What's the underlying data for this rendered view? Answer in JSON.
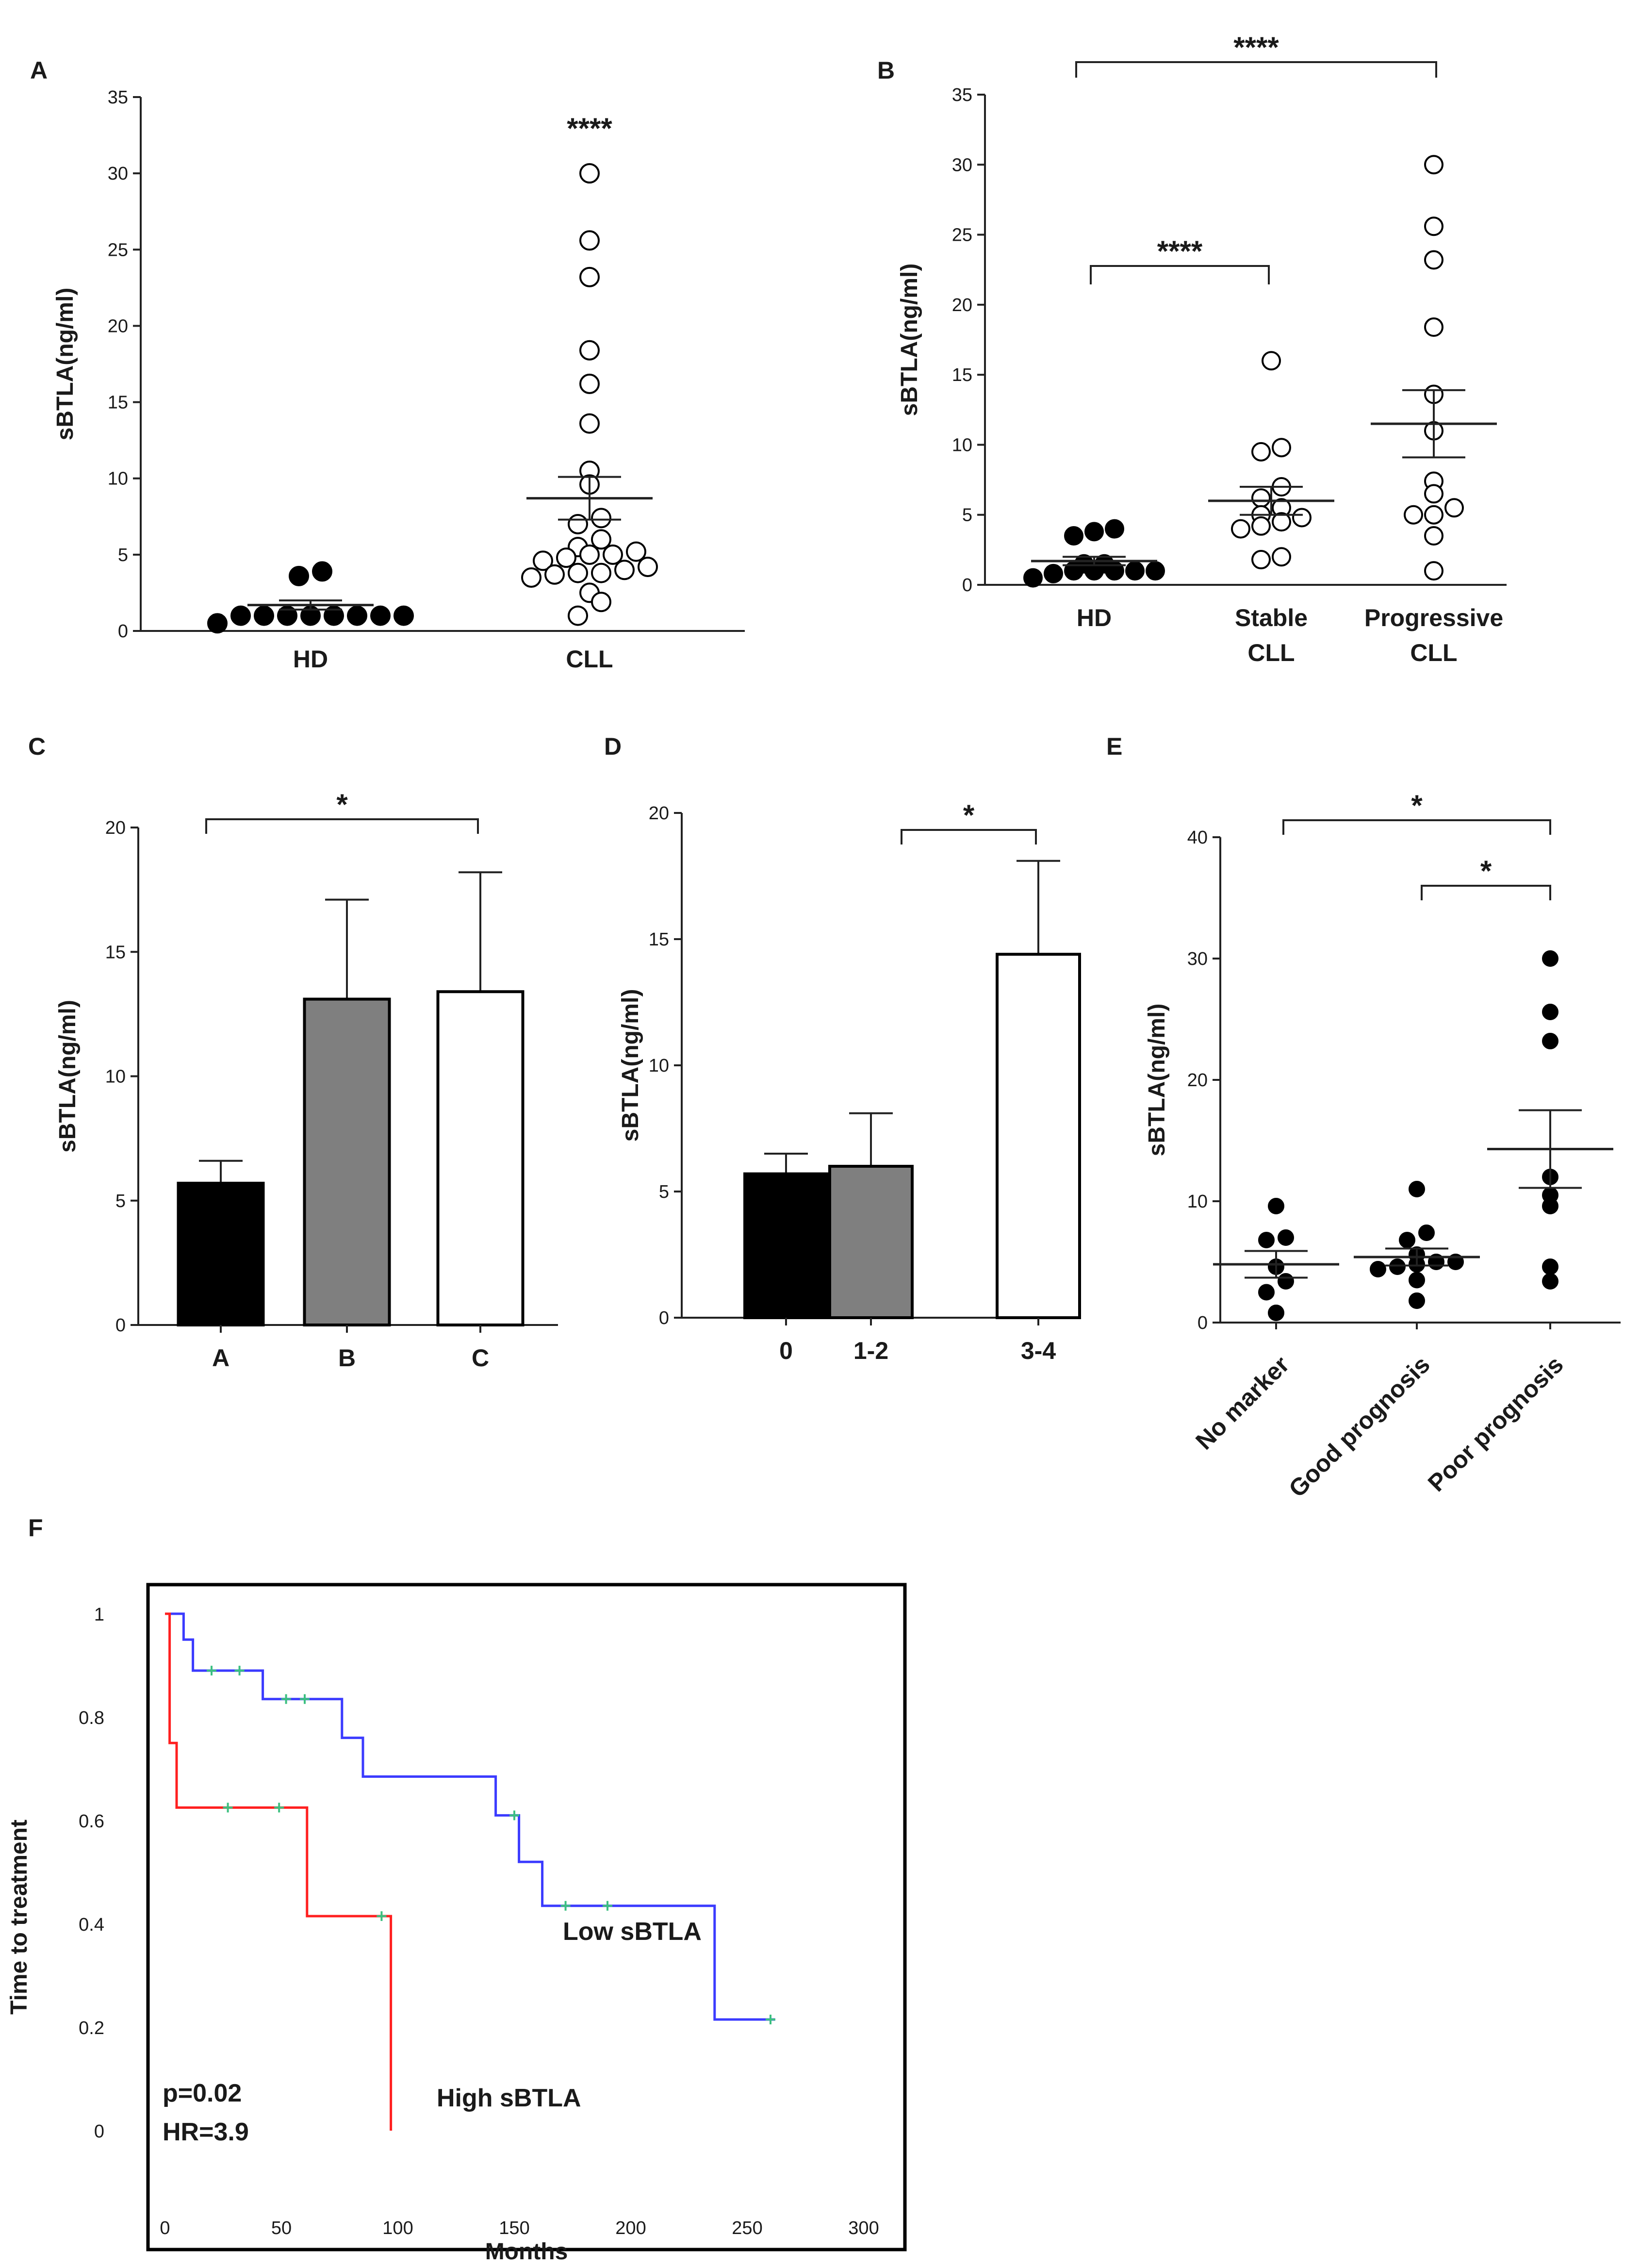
{
  "panel_labels": {
    "A": "A",
    "B": "B",
    "C": "C",
    "D": "D",
    "E": "E",
    "F": "F"
  },
  "colors": {
    "black": "#000000",
    "gray": "#7f7f7f",
    "white": "#ffffff",
    "red": "#ff2020",
    "blue": "#3b3bff",
    "censor": "#3cc080"
  },
  "chart_data": [
    {
      "panel": "A",
      "type": "scatter",
      "ylabel": "sBTLA(ng/ml)",
      "ylim": [
        0,
        35
      ],
      "yticks": [
        0,
        5,
        10,
        15,
        20,
        25,
        30,
        35
      ],
      "categories": [
        "HD",
        "CLL"
      ],
      "series": [
        {
          "category": "HD",
          "fill": "black",
          "values": [
            3.9,
            3.6,
            1.0,
            1.0,
            1.0,
            1.0,
            1.0,
            1.0,
            1.0,
            1.0,
            0.5
          ],
          "mean": 1.7,
          "sem": 0.3
        },
        {
          "category": "CLL",
          "fill": "white",
          "values": [
            30.0,
            25.6,
            23.2,
            18.4,
            16.2,
            13.6,
            10.5,
            9.6,
            7.4,
            7.0,
            6.0,
            5.5,
            5.2,
            5.0,
            5.0,
            4.8,
            4.6,
            4.2,
            4.0,
            3.8,
            3.8,
            3.7,
            3.5,
            2.5,
            1.9,
            1.0
          ],
          "mean": 8.7,
          "sem": 1.4
        }
      ],
      "annotations": [
        {
          "text": "****",
          "over": "CLL"
        }
      ]
    },
    {
      "panel": "B",
      "type": "scatter",
      "ylabel": "sBTLA(ng/ml)",
      "ylim": [
        0,
        35
      ],
      "yticks": [
        0,
        5,
        10,
        15,
        20,
        25,
        30,
        35
      ],
      "categories": [
        "HD",
        "Stable\nCLL",
        "Progressive\nCLL"
      ],
      "series": [
        {
          "category": "HD",
          "fill": "black",
          "values": [
            4.0,
            3.8,
            3.5,
            1.5,
            1.5,
            1.0,
            1.0,
            1.0,
            1.0,
            1.0,
            0.8,
            0.5
          ],
          "mean": 1.7,
          "sem": 0.3
        },
        {
          "category": "Stable CLL",
          "fill": "white",
          "values": [
            16.0,
            9.8,
            9.5,
            7.0,
            6.2,
            5.5,
            5.0,
            4.8,
            4.5,
            4.2,
            4.0,
            2.0,
            1.8
          ],
          "mean": 6.0,
          "sem": 1.0
        },
        {
          "category": "Progressive CLL",
          "fill": "white",
          "values": [
            30.0,
            25.6,
            23.2,
            18.4,
            13.6,
            11.0,
            7.4,
            6.5,
            5.5,
            5.0,
            5.0,
            3.5,
            1.0
          ],
          "mean": 11.5,
          "sem": 2.4
        }
      ],
      "brackets": [
        {
          "from": "HD",
          "to": "Progressive CLL",
          "text": "****"
        },
        {
          "from": "HD",
          "to": "Stable CLL",
          "text": "****"
        }
      ]
    },
    {
      "panel": "C",
      "type": "bar",
      "ylabel": "sBTLA(ng/ml)",
      "ylim": [
        0,
        20
      ],
      "yticks": [
        0,
        5,
        10,
        15,
        20
      ],
      "categories": [
        "A",
        "B",
        "C"
      ],
      "values": [
        5.7,
        13.1,
        13.4
      ],
      "errors": [
        0.9,
        4.0,
        4.8
      ],
      "fills": [
        "black",
        "gray",
        "white"
      ],
      "brackets": [
        {
          "from": "A",
          "to": "C",
          "text": "*"
        }
      ]
    },
    {
      "panel": "D",
      "type": "bar",
      "ylabel": "sBTLA(ng/ml)",
      "ylim": [
        0,
        20
      ],
      "yticks": [
        0,
        5,
        10,
        15,
        20
      ],
      "categories": [
        "0",
        "1-2",
        "3-4"
      ],
      "values": [
        5.7,
        6.0,
        14.4
      ],
      "errors": [
        0.8,
        2.1,
        3.7
      ],
      "fills": [
        "black",
        "gray",
        "white"
      ],
      "brackets": [
        {
          "from": "1-2",
          "to": "3-4",
          "text": "*"
        }
      ]
    },
    {
      "panel": "E",
      "type": "scatter",
      "ylabel": "sBTLA(ng/ml)",
      "ylim": [
        0,
        40
      ],
      "yticks": [
        0,
        10,
        20,
        30,
        40
      ],
      "categories": [
        "No marker",
        "Good prognosis",
        "Poor prognosis"
      ],
      "series": [
        {
          "category": "No marker",
          "fill": "black",
          "values": [
            9.6,
            7.0,
            6.8,
            4.6,
            3.4,
            2.5,
            0.8
          ],
          "mean": 4.8,
          "sem": 1.1
        },
        {
          "category": "Good prognosis",
          "fill": "black",
          "values": [
            11.0,
            7.4,
            6.8,
            5.6,
            5.0,
            5.0,
            4.8,
            4.6,
            4.4,
            3.5,
            1.8
          ],
          "mean": 5.4,
          "sem": 0.7
        },
        {
          "category": "Poor prognosis",
          "fill": "black",
          "values": [
            30.0,
            25.6,
            23.2,
            12.0,
            10.5,
            9.6,
            4.6,
            3.4
          ],
          "mean": 14.3,
          "sem": 3.2
        }
      ],
      "brackets": [
        {
          "from": "No marker",
          "to": "Poor prognosis",
          "text": "*"
        },
        {
          "from": "Good prognosis",
          "to": "Poor prognosis",
          "text": "*"
        }
      ]
    },
    {
      "panel": "F",
      "type": "line",
      "xlabel": "Months",
      "ylabel": "Time to treatment",
      "xlim": [
        0,
        300
      ],
      "ylim": [
        0,
        1
      ],
      "xticks": [
        0,
        50,
        100,
        150,
        200,
        250,
        300
      ],
      "yticks": [
        0,
        0.2,
        0.4,
        0.6,
        0.8,
        1
      ],
      "ytick_labels": [
        "0",
        "0.2",
        "0.4",
        "0.6",
        "0.8",
        "1"
      ],
      "series": [
        {
          "name": "Low sBTLA",
          "color": "blue",
          "x": [
            0,
            8,
            8,
            12,
            12,
            42,
            42,
            76,
            76,
            85,
            85,
            142,
            142,
            152,
            152,
            162,
            162,
            236,
            236,
            262
          ],
          "y": [
            1,
            1,
            0.95,
            0.95,
            0.89,
            0.89,
            0.835,
            0.835,
            0.76,
            0.76,
            0.685,
            0.685,
            0.61,
            0.61,
            0.52,
            0.52,
            0.435,
            0.435,
            0.215,
            0.215
          ],
          "censored": [
            [
              20,
              0.89
            ],
            [
              32,
              0.89
            ],
            [
              52,
              0.835
            ],
            [
              60,
              0.835
            ],
            [
              150,
              0.61
            ],
            [
              172,
              0.435
            ],
            [
              190,
              0.435
            ],
            [
              260,
              0.215
            ]
          ]
        },
        {
          "name": "High sBTLA",
          "color": "red",
          "x": [
            0,
            2,
            2,
            5,
            5,
            61,
            61,
            97,
            97
          ],
          "y": [
            1,
            1,
            0.75,
            0.75,
            0.625,
            0.625,
            0.415,
            0.415,
            0
          ],
          "censored": [
            [
              27,
              0.625
            ],
            [
              49,
              0.625
            ],
            [
              93,
              0.415
            ]
          ]
        }
      ],
      "annotations": [
        "p=0.02",
        "HR=3.9"
      ]
    }
  ]
}
